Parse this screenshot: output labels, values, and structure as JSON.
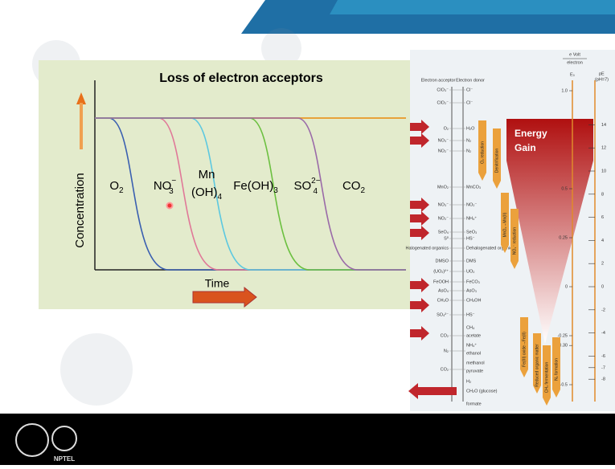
{
  "slide": {
    "chart": {
      "title": "Loss of electron acceptors",
      "y_label": "Concentration",
      "x_label": "Time",
      "zones": [
        {
          "text": "O",
          "sub": "2"
        },
        {
          "text": "NO",
          "sub": "3",
          "sup": "−"
        },
        {
          "text": "Mn",
          "line2": "(OH)",
          "sub": "4"
        },
        {
          "text": "Fe(OH)",
          "sub": "3"
        },
        {
          "text": "SO",
          "sub": "4",
          "sup": "2−"
        },
        {
          "text": "CO",
          "sub": "2"
        }
      ]
    },
    "ladder": {
      "unit_top": "e Volt",
      "unit_bottom": "electron",
      "e0_label": "E₀",
      "pe_label": "pE",
      "pe_note": "(pH=7)",
      "acceptor_header": "Electron acceptor",
      "donor_header": "Electron donor",
      "acceptors": [
        "ClO₃⁻",
        "ClO₂⁻",
        "O₂",
        "NO₃⁻",
        "NO₂⁻",
        "MnO₂",
        "NO₃⁻",
        "NO₂⁻",
        "SeO₄",
        "S⁰",
        "Halogenated organics",
        "DMSO",
        "(UO₂)²⁺",
        "FeOOH",
        "AsO₄",
        "CH₂O",
        "SO₄²⁻",
        "CO₂",
        "N₂",
        "CO₂"
      ],
      "donors": [
        "Cl⁻",
        "Cl⁻",
        "H₂O",
        "N₂",
        "N₂",
        "MnCO₃",
        "NO₂⁻",
        "NH₄⁺",
        "SeO₃",
        "HS⁻",
        "Dehalogenated organics",
        "DMS",
        "UO₂",
        "FeCO₃",
        "AsO₃",
        "CH₃OH",
        "HS⁻",
        "CH₄",
        "acetate",
        "NH₄⁺",
        "ethanol",
        "methanol",
        "pyruvate",
        "H₂",
        "CH₂O (glucose)",
        "formate"
      ],
      "e0_ticks": [
        {
          "value": 1,
          "label": "1.0"
        },
        0.5,
        0.25,
        0,
        -0.25,
        {
          "value": -0.3,
          "label": "-0.30"
        },
        -0.5
      ],
      "pe_ticks": [
        14,
        12,
        10,
        8,
        6,
        4,
        2,
        0,
        -2,
        -4,
        -6,
        -7,
        -8
      ],
      "energy": [
        "Energy",
        "Gain"
      ],
      "processes": [
        "O₂ reduction",
        "Denitrification",
        "MnO₂→Mn(II)",
        "NO₃⁻ reduction",
        "Fe(III) oxide→Fe(II)",
        "Reduced organic matter",
        "CH₄ fermentation",
        "N₂ formation"
      ]
    },
    "footer": {
      "logo_text": "NPTEL"
    }
  }
}
